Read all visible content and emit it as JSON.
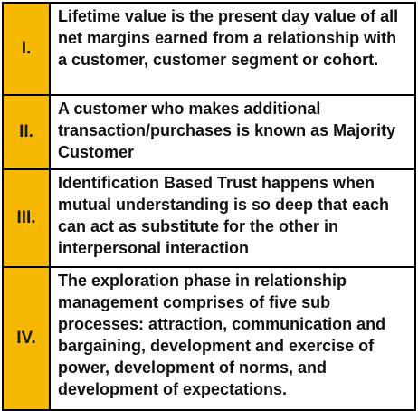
{
  "colors": {
    "number_cell_background": "#f6b800",
    "border": "#000000",
    "text": "#111111"
  },
  "statements": [
    {
      "number": "I.",
      "text": "Lifetime value is the present day value of all net margins earned from a relationship with a customer, customer segment or cohort."
    },
    {
      "number": "II.",
      "text": "A customer who makes additional transaction/purchases is known as Majority Customer"
    },
    {
      "number": "III.",
      "text": "Identification Based Trust happens when mutual understanding is so deep that each can act as substitute for the other in interpersonal interaction"
    },
    {
      "number": "IV.",
      "text": "The exploration phase in relationship management comprises of five sub processes: attraction, communication and bargaining, development and exercise of power, development of norms, and development of expectations."
    }
  ]
}
